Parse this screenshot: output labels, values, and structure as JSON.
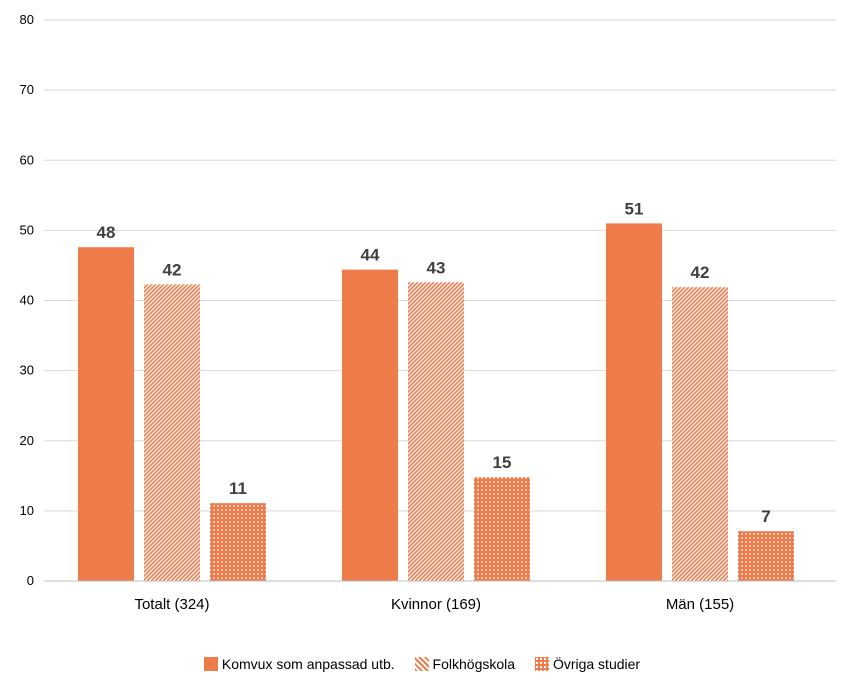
{
  "chart_data": {
    "type": "bar",
    "categories": [
      "Totalt (324)",
      "Kvinnor (169)",
      "Män (155)"
    ],
    "series": [
      {
        "name": "Komvux som anpassad utb.",
        "values": [
          48,
          44,
          51
        ],
        "plot_values": [
          47.6,
          44.4,
          51.0
        ],
        "color": "#ef7b4a",
        "pattern": "solid"
      },
      {
        "name": "Folkhögskola",
        "values": [
          42,
          43,
          42
        ],
        "plot_values": [
          42.3,
          42.6,
          41.9
        ],
        "color": "#ef7b4a",
        "pattern": "diagonal"
      },
      {
        "name": "Övriga studier",
        "values": [
          11,
          15,
          7
        ],
        "plot_values": [
          11.1,
          14.8,
          7.1
        ],
        "color": "#ef7b4a",
        "pattern": "dots"
      }
    ],
    "ylim": [
      0,
      80
    ],
    "yticks": [
      "0",
      "10",
      "20",
      "30",
      "40",
      "50",
      "60",
      "70",
      "80"
    ],
    "grid": true,
    "legend_position": "bottom",
    "title": "",
    "xlabel": "",
    "ylabel": ""
  }
}
